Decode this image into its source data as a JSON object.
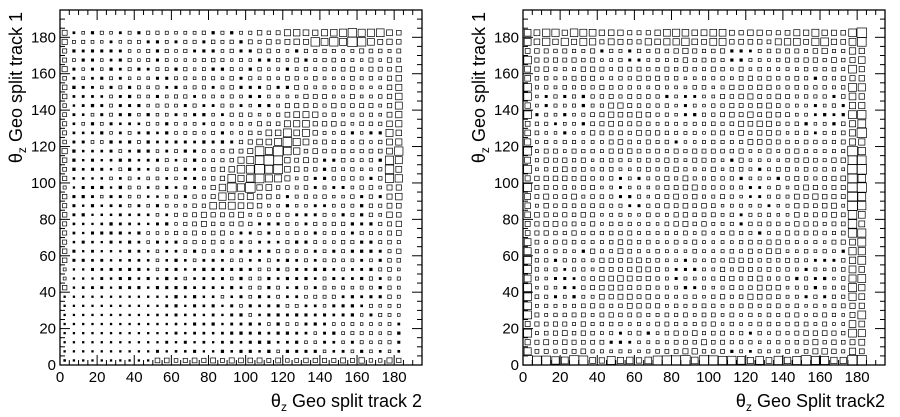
{
  "chart_data": [
    {
      "type": "heatmap",
      "style": "box",
      "title": "",
      "xlabel": {
        "symbol": "θ",
        "sub": "z",
        "text": " Geo split track 2"
      },
      "ylabel": {
        "symbol": "θ",
        "sub": "z",
        "text": " Geo split track 1"
      },
      "xlim": [
        0,
        195
      ],
      "ylim": [
        0,
        195
      ],
      "xticks": [
        0,
        20,
        40,
        60,
        80,
        100,
        120,
        140,
        160,
        180
      ],
      "yticks": [
        0,
        20,
        40,
        60,
        80,
        100,
        120,
        140,
        160,
        180
      ],
      "bin_width": 5,
      "grid": false,
      "description_of_density": "box size proportional to bin content; sparse small boxes everywhere, larger boxes along the diagonal near (90-130, 90-130), along the top row near 180, and the right column near 180"
    },
    {
      "type": "heatmap",
      "style": "box",
      "title": "",
      "xlabel": {
        "symbol": "θ",
        "sub": "z",
        "text": " Geo Split track2"
      },
      "ylabel": {
        "symbol": "θ",
        "sub": "z",
        "text": " Geo split track 1"
      },
      "xlim": [
        0,
        195
      ],
      "ylim": [
        0,
        195
      ],
      "xticks": [
        0,
        20,
        40,
        60,
        80,
        100,
        120,
        140,
        160,
        180
      ],
      "yticks": [
        0,
        20,
        40,
        60,
        80,
        100,
        120,
        140,
        160,
        180
      ],
      "bin_width": 5,
      "grid": false,
      "description_of_density": "box size proportional to bin content; fairly uniform medium boxes, larger boxes along the left column, the bottom row, and the right column near 180 (peak around y=100)"
    }
  ]
}
